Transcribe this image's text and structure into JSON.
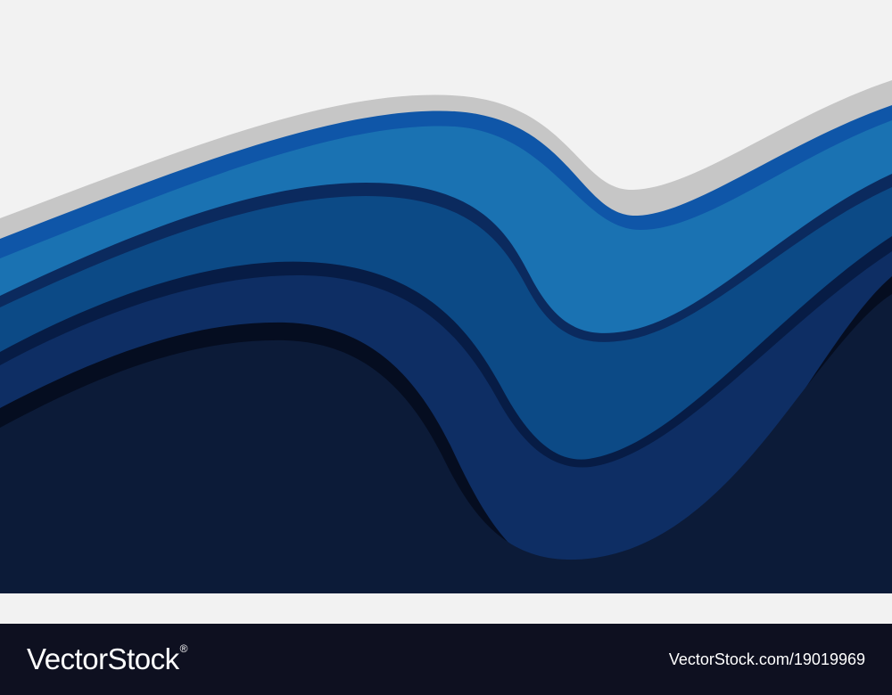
{
  "artwork": {
    "subject": "layered blue paper-cut waves",
    "colors": {
      "background": "#f2f2f2",
      "shadow_band": "#c6c6c6",
      "light_blue_rim": "#0f56a8",
      "light_blue": "#1a72b2",
      "mid_blue_rim": "#0b2a5e",
      "mid_blue": "#0c4a86",
      "deep_blue_rim": "#071c45",
      "deep_blue": "#0e2e64",
      "navy_rim": "#050d20",
      "navy": "#0c1b38"
    }
  },
  "footer": {
    "logo_text": "VectorStock",
    "logo_mark": "®",
    "image_id": "VectorStock.com/19019969",
    "colors": {
      "bar": "#0e1020",
      "text": "#ffffff"
    }
  }
}
